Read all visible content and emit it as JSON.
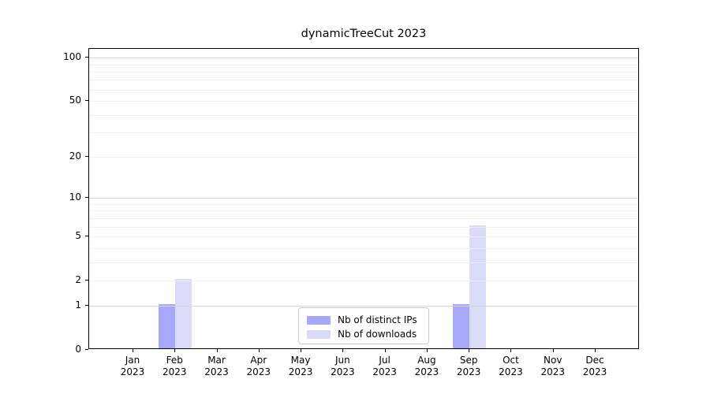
{
  "chart_data": {
    "type": "bar",
    "title": "dynamicTreeCut 2023",
    "categories": [
      "Jan",
      "Feb",
      "Mar",
      "Apr",
      "May",
      "Jun",
      "Jul",
      "Aug",
      "Sep",
      "Oct",
      "Nov",
      "Dec"
    ],
    "category_year": "2023",
    "series": [
      {
        "name": "Nb of distinct IPs",
        "color": "#a8a8f8",
        "values": [
          0,
          1,
          0,
          0,
          0,
          0,
          0,
          0,
          1,
          0,
          0,
          0
        ]
      },
      {
        "name": "Nb of downloads",
        "color": "#d9dbf8",
        "values": [
          0,
          2,
          0,
          0,
          0,
          0,
          0,
          0,
          6,
          0,
          0,
          0
        ]
      }
    ],
    "yscale": "log1p",
    "ylim": [
      0,
      115
    ],
    "yticks": [
      0,
      1,
      2,
      5,
      10,
      20,
      50,
      100
    ],
    "minor_gridlines": [
      2,
      3,
      4,
      5,
      6,
      7,
      8,
      9,
      20,
      30,
      40,
      50,
      60,
      70,
      80,
      90
    ],
    "major_gridlines": [
      1,
      10,
      100
    ],
    "xlabel": "",
    "ylabel": "",
    "grid": "horizontal",
    "legend_position": "lower center",
    "colors": {
      "minor_grid": "#efefef",
      "major_grid": "#d4d4d4",
      "axis": "#000000",
      "legend_border": "#cccccc"
    }
  }
}
